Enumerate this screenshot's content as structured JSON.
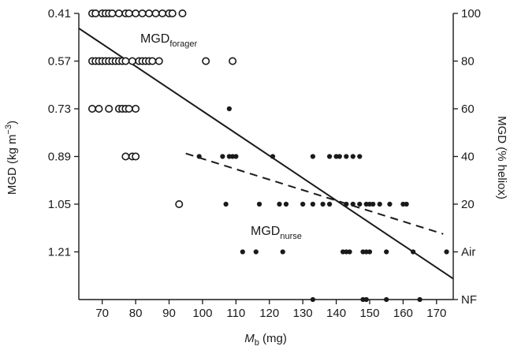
{
  "chart_data": {
    "type": "scatter",
    "x_axis": {
      "title_main": "M",
      "title_sub": "b",
      "title_unit": " (mg)",
      "range": [
        63,
        175
      ],
      "ticks": [
        70,
        80,
        90,
        100,
        110,
        120,
        130,
        140,
        150,
        160,
        170
      ]
    },
    "y_left_axis": {
      "title_pre": "MGD (kg m",
      "title_sup": "−3",
      "title_post": ")",
      "range": [
        1.37,
        0.41
      ],
      "ticks": [
        {
          "value": 0.41,
          "label": "0.41"
        },
        {
          "value": 0.57,
          "label": "0.57"
        },
        {
          "value": 0.73,
          "label": "0.73"
        },
        {
          "value": 0.89,
          "label": "0.89"
        },
        {
          "value": 1.05,
          "label": "1.05"
        },
        {
          "value": 1.21,
          "label": "1.21"
        }
      ]
    },
    "y_right_axis": {
      "title": "MGD (% heliox)",
      "ticks": [
        {
          "value": 0.41,
          "label": "100"
        },
        {
          "value": 0.57,
          "label": "80"
        },
        {
          "value": 0.73,
          "label": "60"
        },
        {
          "value": 0.89,
          "label": "40"
        },
        {
          "value": 1.05,
          "label": "20"
        },
        {
          "value": 1.21,
          "label": "Air"
        },
        {
          "value": 1.37,
          "label": "NF"
        }
      ]
    },
    "annotations": [
      {
        "main": "MGD",
        "sub": "forager"
      },
      {
        "main": "MGD",
        "sub": "nurse"
      }
    ],
    "series": [
      {
        "marker": "open-circle",
        "points": [
          [
            67,
            0.41
          ],
          [
            68,
            0.41
          ],
          [
            70,
            0.41
          ],
          [
            71,
            0.41
          ],
          [
            72,
            0.41
          ],
          [
            73,
            0.41
          ],
          [
            75,
            0.41
          ],
          [
            77,
            0.41
          ],
          [
            78,
            0.41
          ],
          [
            80,
            0.41
          ],
          [
            82,
            0.41
          ],
          [
            84,
            0.41
          ],
          [
            86,
            0.41
          ],
          [
            88,
            0.41
          ],
          [
            90,
            0.41
          ],
          [
            91,
            0.41
          ],
          [
            94,
            0.41
          ],
          [
            67,
            0.57
          ],
          [
            68,
            0.57
          ],
          [
            69,
            0.57
          ],
          [
            70,
            0.57
          ],
          [
            71,
            0.57
          ],
          [
            72,
            0.57
          ],
          [
            73,
            0.57
          ],
          [
            74,
            0.57
          ],
          [
            75,
            0.57
          ],
          [
            76,
            0.57
          ],
          [
            77,
            0.57
          ],
          [
            79,
            0.57
          ],
          [
            81,
            0.57
          ],
          [
            82,
            0.57
          ],
          [
            83,
            0.57
          ],
          [
            84,
            0.57
          ],
          [
            85,
            0.57
          ],
          [
            87,
            0.57
          ],
          [
            101,
            0.57
          ],
          [
            109,
            0.57
          ],
          [
            67,
            0.73
          ],
          [
            69,
            0.73
          ],
          [
            72,
            0.73
          ],
          [
            75,
            0.73
          ],
          [
            76,
            0.73
          ],
          [
            77,
            0.73
          ],
          [
            78,
            0.73
          ],
          [
            80,
            0.73
          ],
          [
            77,
            0.89
          ],
          [
            79,
            0.89
          ],
          [
            80,
            0.89
          ],
          [
            93,
            1.05
          ]
        ]
      },
      {
        "marker": "filled-circle",
        "points": [
          [
            108,
            0.73
          ],
          [
            99,
            0.89
          ],
          [
            106,
            0.89
          ],
          [
            108,
            0.89
          ],
          [
            109,
            0.89
          ],
          [
            110,
            0.89
          ],
          [
            121,
            0.89
          ],
          [
            133,
            0.89
          ],
          [
            138,
            0.89
          ],
          [
            140,
            0.89
          ],
          [
            141,
            0.89
          ],
          [
            143,
            0.89
          ],
          [
            145,
            0.89
          ],
          [
            147,
            0.89
          ],
          [
            107,
            1.05
          ],
          [
            117,
            1.05
          ],
          [
            123,
            1.05
          ],
          [
            125,
            1.05
          ],
          [
            130,
            1.05
          ],
          [
            133,
            1.05
          ],
          [
            136,
            1.05
          ],
          [
            138,
            1.05
          ],
          [
            143,
            1.05
          ],
          [
            145,
            1.05
          ],
          [
            147,
            1.05
          ],
          [
            149,
            1.05
          ],
          [
            150,
            1.05
          ],
          [
            151,
            1.05
          ],
          [
            153,
            1.05
          ],
          [
            156,
            1.05
          ],
          [
            160,
            1.05
          ],
          [
            161,
            1.05
          ],
          [
            112,
            1.21
          ],
          [
            116,
            1.21
          ],
          [
            124,
            1.21
          ],
          [
            142,
            1.21
          ],
          [
            143,
            1.21
          ],
          [
            144,
            1.21
          ],
          [
            148,
            1.21
          ],
          [
            149,
            1.21
          ],
          [
            150,
            1.21
          ],
          [
            155,
            1.21
          ],
          [
            163,
            1.21
          ],
          [
            173,
            1.21
          ],
          [
            133,
            1.37
          ],
          [
            148,
            1.37
          ],
          [
            149,
            1.37
          ],
          [
            155,
            1.37
          ],
          [
            165,
            1.37
          ]
        ]
      }
    ],
    "lines": [
      {
        "style": "solid",
        "from": [
          63,
          0.46
        ],
        "to": [
          175,
          1.3
        ]
      },
      {
        "style": "dashed",
        "from": [
          95,
          0.88
        ],
        "to": [
          172,
          1.15
        ]
      }
    ]
  }
}
